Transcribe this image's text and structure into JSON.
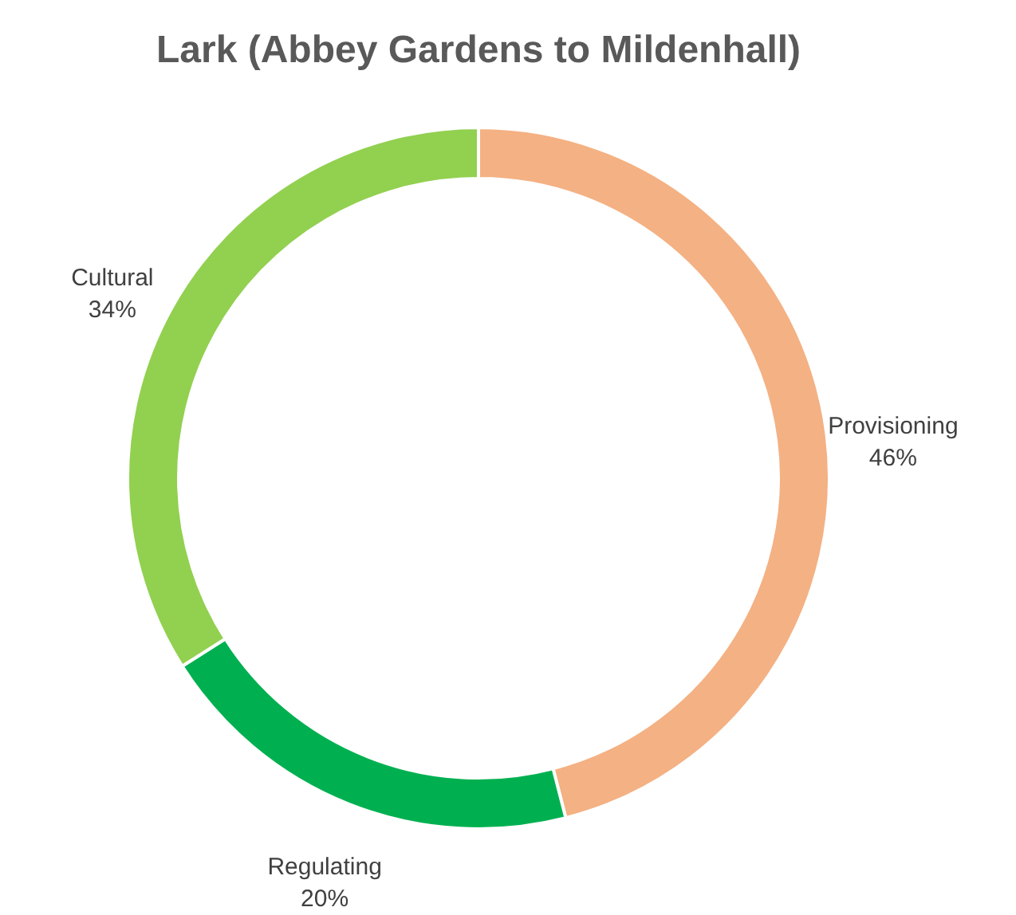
{
  "chart_data": {
    "type": "donut",
    "title": "Lark (Abbey Gardens to Mildenhall)",
    "categories": [
      "Provisioning",
      "Regulating",
      "Cultural"
    ],
    "values": [
      46,
      20,
      34
    ],
    "value_labels": [
      "46%",
      "20%",
      "34%"
    ],
    "colors": [
      "#f4b183",
      "#00b050",
      "#92d050"
    ],
    "legend": false
  }
}
